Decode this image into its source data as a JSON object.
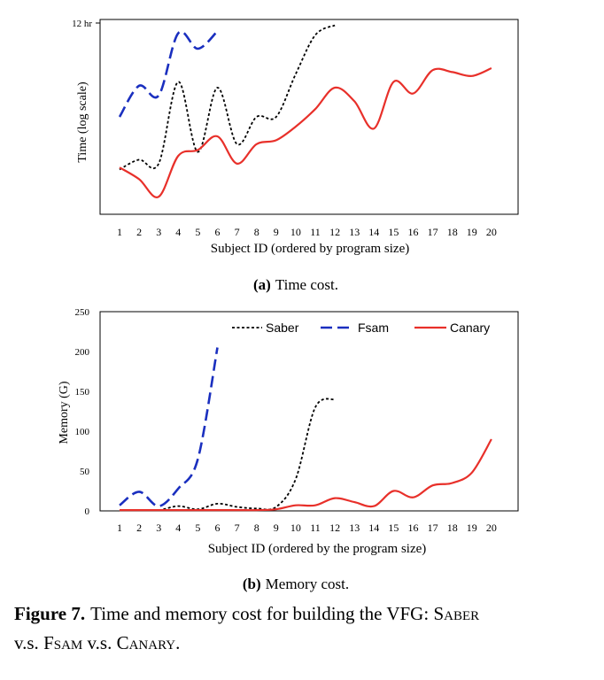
{
  "figure": {
    "label": "Figure 7.",
    "caption_text": "Time and memory cost for building the VFG: Saber v.s. Fsam v.s. Canary."
  },
  "chart_data": [
    {
      "type": "line",
      "panel": "(a)",
      "subcaption": "Time cost.",
      "title": "",
      "xlabel": "Subject ID (ordered by program size)",
      "ylabel": "Time (log scale)",
      "yscale": "log",
      "ytick_labels": [
        "12 hr"
      ],
      "grid": false,
      "legend": "none",
      "categories": [
        "1",
        "2",
        "3",
        "4",
        "5",
        "6",
        "7",
        "8",
        "9",
        "10",
        "11",
        "12",
        "13",
        "14",
        "15",
        "16",
        "17",
        "18",
        "19",
        "20"
      ],
      "series": [
        {
          "name": "Saber",
          "style": "dotted",
          "color": "#000000",
          "values": [
            0.23,
            0.28,
            0.26,
            0.68,
            0.32,
            0.65,
            0.36,
            0.5,
            0.5,
            0.72,
            0.92,
            0.97,
            null,
            null,
            null,
            null,
            null,
            null,
            null,
            null
          ]
        },
        {
          "name": "Fsam",
          "style": "dashed",
          "color": "#1a2fbf",
          "values": [
            0.5,
            0.66,
            0.61,
            0.93,
            0.85,
            0.94,
            null,
            null,
            null,
            null,
            null,
            null,
            null,
            null,
            null,
            null,
            null,
            null,
            null,
            null
          ]
        },
        {
          "name": "Canary",
          "style": "solid",
          "color": "#e8302a",
          "values": [
            0.24,
            0.18,
            0.09,
            0.3,
            0.33,
            0.4,
            0.26,
            0.36,
            0.38,
            0.45,
            0.54,
            0.65,
            0.58,
            0.44,
            0.68,
            0.62,
            0.74,
            0.73,
            0.71,
            0.75
          ]
        }
      ]
    },
    {
      "type": "line",
      "panel": "(b)",
      "subcaption": "Memory cost.",
      "title": "",
      "xlabel": "Subject ID (ordered by the program size)",
      "ylabel": "Memory (G)",
      "ylim": [
        0,
        250
      ],
      "yticks": [
        0,
        50,
        100,
        150,
        200,
        250
      ],
      "grid": false,
      "legend": "top-right",
      "categories": [
        "1",
        "2",
        "3",
        "4",
        "5",
        "6",
        "7",
        "8",
        "9",
        "10",
        "11",
        "12",
        "13",
        "14",
        "15",
        "16",
        "17",
        "18",
        "19",
        "20"
      ],
      "series": [
        {
          "name": "Saber",
          "style": "dotted",
          "color": "#000000",
          "values": [
            1,
            1,
            1,
            6,
            2,
            9,
            5,
            3,
            5,
            40,
            130,
            140,
            null,
            null,
            null,
            null,
            null,
            null,
            null,
            null
          ]
        },
        {
          "name": "Fsam",
          "style": "dashed",
          "color": "#1a2fbf",
          "values": [
            7,
            24,
            6,
            28,
            65,
            205,
            null,
            null,
            null,
            null,
            null,
            null,
            null,
            null,
            null,
            null,
            null,
            null,
            null,
            null
          ]
        },
        {
          "name": "Canary",
          "style": "solid",
          "color": "#e8302a",
          "values": [
            1,
            1,
            1,
            1,
            1,
            1,
            1,
            1,
            2,
            7,
            7,
            16,
            11,
            6,
            25,
            17,
            32,
            35,
            48,
            90
          ]
        }
      ]
    }
  ]
}
